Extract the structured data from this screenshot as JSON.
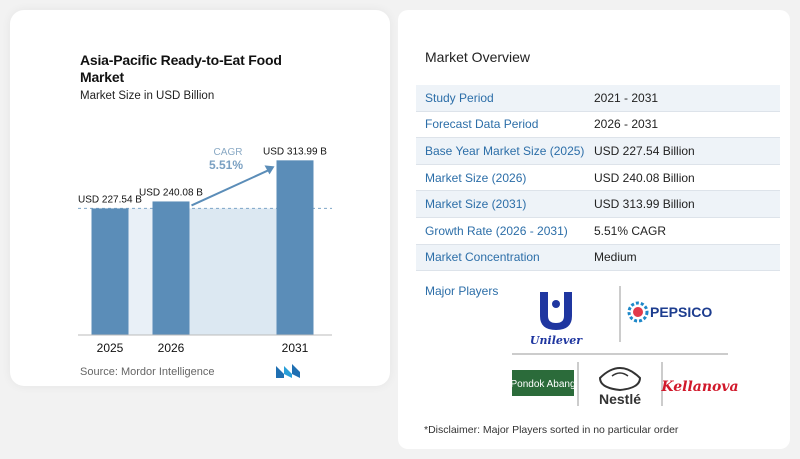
{
  "chart_data": {
    "type": "bar",
    "title": "Asia-Pacific Ready-to-Eat Food Market",
    "subtitle": "Market Size in USD Billion",
    "categories": [
      "2025",
      "2026",
      "2031"
    ],
    "values": [
      227.54,
      240.08,
      313.99
    ],
    "data_labels": [
      "USD 227.54 B",
      "USD 240.08 B",
      "USD 313.99 B"
    ],
    "cagr_label": "CAGR",
    "cagr_value": "5.51%",
    "ylim": [
      0,
      320
    ],
    "bar_color": "#5b8db8",
    "highlight_color": "#dce8f2"
  },
  "source": "Source:  Mordor Intelligence",
  "overview": {
    "title": "Market Overview",
    "rows": [
      {
        "key": "Study Period",
        "value": "2021 - 2031"
      },
      {
        "key": "Forecast Data Period",
        "value": "2026 - 2031"
      },
      {
        "key": "Base Year Market Size (2025)",
        "value": "USD 227.54 Billion"
      },
      {
        "key": "Market Size (2026)",
        "value": "USD 240.08 Billion"
      },
      {
        "key": "Market Size (2031)",
        "value": "USD 313.99 Billion"
      },
      {
        "key": "Growth Rate (2026 - 2031)",
        "value": "5.51% CAGR"
      },
      {
        "key": "Market Concentration",
        "value": "Medium"
      }
    ],
    "players_label": "Major Players",
    "players": [
      "Unilever",
      "PEPSICO",
      "Pondok Abang",
      "Nestlé",
      "Kellanova"
    ],
    "disclaimer": "*Disclaimer: Major Players sorted in no particular order"
  }
}
